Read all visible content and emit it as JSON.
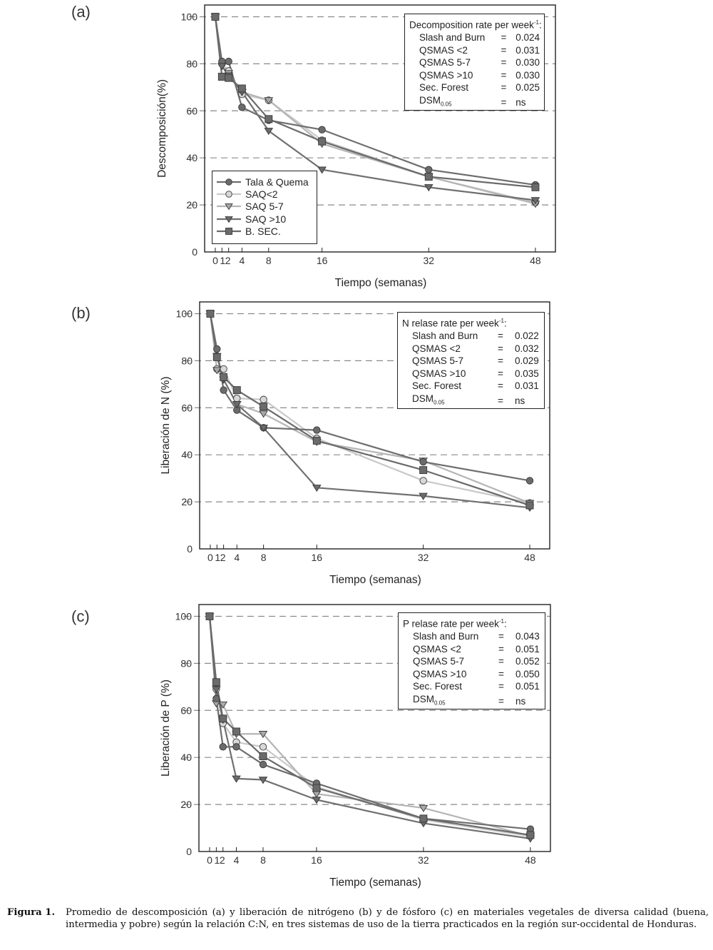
{
  "caption": {
    "label": "Figura 1.",
    "text": "Promedio de descomposición (a) y liberación de nitrógeno (b) y de fósforo (c) en  materiales vegetales de diversa calidad (buena, intermedia y pobre) según la relación C:N, en tres sistemas de uso de la tierra practicados en la región sur-occidental de Honduras."
  },
  "legend": {
    "entries": [
      {
        "label": "Tala & Quema",
        "marker": "circle",
        "fill": "#6b6b6b",
        "line": "#6e6e6e"
      },
      {
        "label": "SAQ<2",
        "marker": "circle",
        "fill": "#d8d8d8",
        "line": "#c9c9c9"
      },
      {
        "label": "SAQ 5-7",
        "marker": "triangle-down",
        "fill": "#a9a9a9",
        "line": "#b5b5b5"
      },
      {
        "label": "SAQ >10",
        "marker": "triangle-down",
        "fill": "#6b6b6b",
        "line": "#707070"
      },
      {
        "label": "B. SEC.",
        "marker": "square",
        "fill": "#6b6b6b",
        "line": "#6a6a6a"
      }
    ]
  },
  "chart_data": [
    {
      "id": "a",
      "panel_label": "(a)",
      "type": "line",
      "ylabel": "Descomposición(%)",
      "xlabel": "Tiempo (semanas)",
      "x": [
        0,
        1,
        2,
        4,
        8,
        16,
        32,
        48
      ],
      "x_tick_labels": [
        "0",
        "1",
        "2",
        "4",
        "8",
        "16",
        "32",
        "48"
      ],
      "xlim": [
        -1.6,
        51
      ],
      "ylim": [
        0,
        105
      ],
      "y_ticks": [
        0,
        20,
        40,
        60,
        80,
        100
      ],
      "grid": "horizontal dashed at 20,40,60,80,100",
      "legend_position": "bottom-left",
      "rate_box": {
        "title": "Decomposition rate per week",
        "title_sup": "-1",
        "rows": [
          {
            "name": "Slash and Burn",
            "value": "0.024"
          },
          {
            "name": "QSMAS <2",
            "value": "0.031"
          },
          {
            "name": "QSMAS 5-7",
            "value": "0.030"
          },
          {
            "name": "QSMAS >10",
            "value": "0.030"
          },
          {
            "name": "Sec. Forest",
            "value": "0.025"
          },
          {
            "name": "DSM",
            "sub": "0.05",
            "value": "ns"
          }
        ]
      },
      "series": [
        {
          "name": "Tala & Quema",
          "values": [
            100,
            81,
            81,
            61.5,
            56,
            52,
            35,
            28.5
          ]
        },
        {
          "name": "SAQ<2",
          "values": [
            100,
            80,
            77,
            67,
            64.5,
            47.5,
            32,
            21
          ]
        },
        {
          "name": "SAQ 5-7",
          "values": [
            100,
            79,
            76,
            68,
            64.5,
            46,
            32,
            20.5
          ]
        },
        {
          "name": "SAQ >10",
          "values": [
            100,
            79,
            75,
            68,
            51.5,
            35,
            27.5,
            22
          ]
        },
        {
          "name": "B. SEC.",
          "values": [
            100,
            74.5,
            74,
            69.5,
            56.5,
            47,
            32,
            27.5
          ]
        }
      ]
    },
    {
      "id": "b",
      "panel_label": "(b)",
      "type": "line",
      "ylabel": "Liberación de N (%)",
      "xlabel": "Tiempo (semanas)",
      "x": [
        0,
        1,
        2,
        4,
        8,
        16,
        32,
        48
      ],
      "x_tick_labels": [
        "0",
        "1",
        "2",
        "4",
        "8",
        "16",
        "32",
        "48"
      ],
      "xlim": [
        -1.6,
        51
      ],
      "ylim": [
        0,
        105
      ],
      "y_ticks": [
        0,
        20,
        40,
        60,
        80,
        100
      ],
      "grid": "horizontal dashed at 20,40,60,80,100",
      "rate_box": {
        "title": "N relase rate per week",
        "title_sup": "-1",
        "rows": [
          {
            "name": "Slash and Burn",
            "value": "0.022"
          },
          {
            "name": "QSMAS <2",
            "value": "0.032"
          },
          {
            "name": "QSMAS 5-7",
            "value": "0.029"
          },
          {
            "name": "QSMAS >10",
            "value": "0.035"
          },
          {
            "name": "Sec. Forest",
            "value": "0.031"
          },
          {
            "name": "DSM",
            "sub": "0.05",
            "value": "ns"
          }
        ]
      },
      "series": [
        {
          "name": "Tala & Quema",
          "values": [
            100,
            85,
            67.5,
            59,
            51.5,
            50.5,
            37,
            29
          ]
        },
        {
          "name": "SAQ<2",
          "values": [
            100,
            76.5,
            76.5,
            64,
            63.5,
            47,
            29,
            19.5
          ]
        },
        {
          "name": "SAQ 5-7",
          "values": [
            100,
            76,
            72,
            61.5,
            57.5,
            45.5,
            37.5,
            19.5
          ]
        },
        {
          "name": "SAQ >10",
          "values": [
            100,
            82,
            72,
            61.5,
            51.5,
            26,
            22.5,
            17.5
          ]
        },
        {
          "name": "B. SEC.",
          "values": [
            100,
            81.5,
            73,
            67.5,
            60.5,
            46,
            33.5,
            18.5
          ]
        }
      ]
    },
    {
      "id": "c",
      "panel_label": "(c)",
      "type": "line",
      "ylabel": "Liberación de P (%)",
      "xlabel": "Tiempo (semanas)",
      "x": [
        0,
        1,
        2,
        4,
        8,
        16,
        32,
        48
      ],
      "x_tick_labels": [
        "0",
        "1",
        "2",
        "4",
        "8",
        "16",
        "32",
        "48"
      ],
      "xlim": [
        -1.6,
        51
      ],
      "ylim": [
        0,
        105
      ],
      "y_ticks": [
        0,
        20,
        40,
        60,
        80,
        100
      ],
      "grid": "horizontal dashed at 20,40,60,80,100",
      "rate_box": {
        "title": "P relase rate per week",
        "title_sup": "-1",
        "rows": [
          {
            "name": "Slash and Burn",
            "value": "0.043"
          },
          {
            "name": "QSMAS <2",
            "value": "0.051"
          },
          {
            "name": "QSMAS 5-7",
            "value": "0.052"
          },
          {
            "name": "QSMAS >10",
            "value": "0.050"
          },
          {
            "name": "Sec. Forest",
            "value": "0.051"
          },
          {
            "name": "DSM",
            "sub": "0.05",
            "value": "ns"
          }
        ]
      },
      "series": [
        {
          "name": "Tala & Quema",
          "values": [
            100,
            65,
            44.5,
            44.5,
            37,
            29,
            14,
            9.5
          ]
        },
        {
          "name": "SAQ<2",
          "values": [
            100,
            69,
            54.5,
            46.5,
            44.5,
            27.5,
            13.5,
            6.5
          ]
        },
        {
          "name": "SAQ 5-7",
          "values": [
            100,
            63,
            62.5,
            50,
            50,
            24.5,
            18.5,
            6.5
          ]
        },
        {
          "name": "SAQ >10",
          "values": [
            100,
            69,
            56,
            31,
            30.5,
            22,
            12,
            5.5
          ]
        },
        {
          "name": "B. SEC.",
          "values": [
            100,
            72,
            56.5,
            51,
            40.5,
            27,
            14,
            7
          ]
        }
      ]
    }
  ]
}
